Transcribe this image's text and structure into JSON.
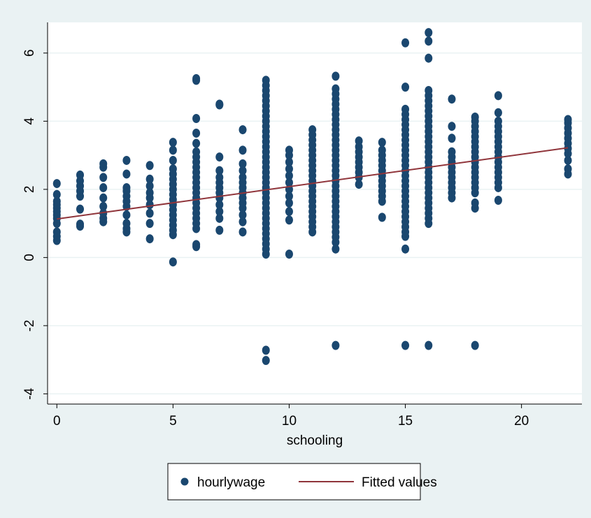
{
  "chart_data": {
    "type": "scatter",
    "xlabel": "schooling",
    "ylabel": "",
    "xlim": [
      -0.4,
      22.6
    ],
    "ylim": [
      -4.3,
      6.9
    ],
    "xticks": [
      0,
      5,
      10,
      15,
      20
    ],
    "yticks": [
      -4,
      -2,
      0,
      2,
      4,
      6
    ],
    "grid": true,
    "legend": {
      "placement": "bottom-center",
      "entries": [
        "hourlywage",
        "Fitted values"
      ]
    },
    "colors": {
      "points": "#1a476f",
      "fitted": "#90353b",
      "plot_bg": "#ffffff",
      "outer_bg": "#eaf2f3",
      "grid": "#eaf2f3"
    },
    "series": [
      {
        "name": "hourlywage",
        "kind": "scatter",
        "columns": [
          {
            "x": 0,
            "y": [
              0.5,
              0.62,
              0.75,
              1.0,
              1.15,
              1.25,
              1.35,
              1.45,
              1.55,
              1.65,
              1.85,
              2.17
            ]
          },
          {
            "x": 1,
            "y": [
              0.92,
              0.98,
              1.42,
              1.8,
              1.95,
              2.1,
              2.25,
              2.42
            ]
          },
          {
            "x": 2,
            "y": [
              1.05,
              1.15,
              1.3,
              1.5,
              1.75,
              2.05,
              2.35,
              2.65,
              2.75
            ]
          },
          {
            "x": 3,
            "y": [
              0.75,
              0.85,
              1.0,
              1.25,
              1.5,
              1.65,
              1.8,
              1.95,
              2.05,
              2.45,
              2.85
            ]
          },
          {
            "x": 4,
            "y": [
              0.55,
              1.0,
              1.3,
              1.55,
              1.75,
              1.9,
              2.1,
              2.3,
              2.7
            ]
          },
          {
            "x": 5,
            "y": [
              -0.13,
              0.67,
              0.8,
              0.95,
              1.1,
              1.25,
              1.4,
              1.55,
              1.7,
              1.85,
              2.0,
              2.15,
              2.3,
              2.45,
              2.6,
              2.85,
              3.15,
              3.38
            ]
          },
          {
            "x": 6,
            "y": [
              0.32,
              0.38,
              0.85,
              1.0,
              1.15,
              1.3,
              1.45,
              1.6,
              1.75,
              1.9,
              2.05,
              2.2,
              2.35,
              2.5,
              2.65,
              2.8,
              2.95,
              3.1,
              3.35,
              3.65,
              4.08,
              5.2,
              5.25
            ]
          },
          {
            "x": 7,
            "y": [
              0.8,
              1.15,
              1.35,
              1.55,
              1.75,
              1.9,
              2.05,
              2.2,
              2.35,
              2.55,
              2.95,
              4.48,
              4.5
            ]
          },
          {
            "x": 8,
            "y": [
              0.75,
              1.05,
              1.25,
              1.45,
              1.6,
              1.75,
              1.9,
              2.05,
              2.2,
              2.35,
              2.55,
              2.75,
              3.15,
              3.75
            ]
          },
          {
            "x": 9,
            "y": [
              -3.02,
              -2.72,
              0.1,
              0.25,
              0.4,
              0.55,
              0.7,
              0.85,
              1.0,
              1.15,
              1.3,
              1.45,
              1.6,
              1.75,
              1.9,
              2.05,
              2.2,
              2.35,
              2.5,
              2.65,
              2.8,
              2.95,
              3.1,
              3.25,
              3.4,
              3.55,
              3.7,
              3.85,
              4.0,
              4.15,
              4.3,
              4.45,
              4.6,
              4.75,
              4.9,
              5.05,
              5.2
            ]
          },
          {
            "x": 10,
            "y": [
              0.1,
              1.1,
              1.35,
              1.6,
              1.8,
              2.0,
              2.2,
              2.4,
              2.6,
              2.8,
              3.0,
              3.15
            ]
          },
          {
            "x": 11,
            "y": [
              0.75,
              0.9,
              1.05,
              1.2,
              1.35,
              1.5,
              1.65,
              1.8,
              1.95,
              2.1,
              2.25,
              2.4,
              2.55,
              2.7,
              2.85,
              3.0,
              3.15,
              3.3,
              3.45,
              3.6,
              3.75
            ]
          },
          {
            "x": 12,
            "y": [
              -2.58,
              0.25,
              0.45,
              0.6,
              0.75,
              0.9,
              1.05,
              1.2,
              1.35,
              1.5,
              1.65,
              1.8,
              1.95,
              2.1,
              2.25,
              2.4,
              2.55,
              2.7,
              2.85,
              3.0,
              3.15,
              3.3,
              3.45,
              3.6,
              3.75,
              3.9,
              4.05,
              4.2,
              4.35,
              4.5,
              4.65,
              4.8,
              4.95,
              5.32
            ]
          },
          {
            "x": 13,
            "y": [
              2.15,
              2.35,
              2.5,
              2.65,
              2.8,
              2.95,
              3.1,
              3.25,
              3.42
            ]
          },
          {
            "x": 14,
            "y": [
              1.18,
              1.65,
              1.8,
              1.95,
              2.1,
              2.25,
              2.4,
              2.55,
              2.7,
              2.85,
              3.0,
              3.15,
              3.38
            ]
          },
          {
            "x": 15,
            "y": [
              -2.58,
              0.25,
              0.62,
              0.75,
              0.9,
              1.05,
              1.2,
              1.35,
              1.5,
              1.65,
              1.8,
              1.95,
              2.1,
              2.25,
              2.4,
              2.55,
              2.7,
              2.85,
              3.0,
              3.15,
              3.3,
              3.45,
              3.6,
              3.75,
              3.9,
              4.05,
              4.2,
              4.35,
              5.0,
              6.3
            ]
          },
          {
            "x": 16,
            "y": [
              -2.58,
              1.0,
              1.15,
              1.3,
              1.45,
              1.6,
              1.75,
              1.9,
              2.05,
              2.2,
              2.35,
              2.5,
              2.65,
              2.8,
              2.95,
              3.1,
              3.25,
              3.4,
              3.55,
              3.7,
              3.85,
              4.0,
              4.15,
              4.3,
              4.45,
              4.6,
              4.75,
              4.9,
              5.85,
              6.35,
              6.6
            ]
          },
          {
            "x": 17,
            "y": [
              1.75,
              1.9,
              2.05,
              2.2,
              2.35,
              2.5,
              2.65,
              2.8,
              2.95,
              3.1,
              3.5,
              3.85,
              4.65
            ]
          },
          {
            "x": 18,
            "y": [
              -2.58,
              1.45,
              1.6,
              1.9,
              2.05,
              2.2,
              2.35,
              2.5,
              2.65,
              2.8,
              2.95,
              3.1,
              3.25,
              3.4,
              3.55,
              3.7,
              3.85,
              4.0,
              4.12
            ]
          },
          {
            "x": 19,
            "y": [
              1.68,
              2.05,
              2.2,
              2.35,
              2.5,
              2.65,
              2.8,
              2.95,
              3.1,
              3.25,
              3.4,
              3.55,
              3.7,
              3.85,
              4.0,
              4.25,
              4.75
            ]
          },
          {
            "x": 22,
            "y": [
              2.45,
              2.6,
              2.85,
              3.05,
              3.2,
              3.35,
              3.5,
              3.65,
              3.8,
              3.95,
              4.05
            ]
          }
        ]
      },
      {
        "name": "Fitted values",
        "kind": "line",
        "points": [
          {
            "x": 0,
            "y": 1.13
          },
          {
            "x": 22,
            "y": 3.22
          }
        ]
      }
    ]
  }
}
